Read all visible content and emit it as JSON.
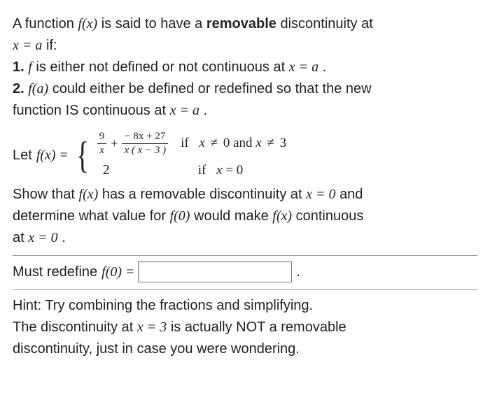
{
  "intro": {
    "line1_pre": "A function ",
    "fx": "f(x)",
    "line1_mid": " is said to have a ",
    "removable": "removable",
    "line1_post": " discontinuity at",
    "line2_pre": "",
    "xeqa": "x = a",
    "line2_post": " if:"
  },
  "cond1": {
    "num": "1.",
    "pre": " ",
    "f": "f",
    "mid": " is either not defined or not continuous at ",
    "xeqa": "x = a",
    "post": "."
  },
  "cond2": {
    "num": "2.",
    "pre": " ",
    "fa": "f(a)",
    "mid": " could either be defined or redefined so that the new",
    "line2": "function IS continuous at ",
    "xeqa": "x = a",
    "post": "."
  },
  "let": {
    "pre": "Let ",
    "fx": "f(x)",
    "eq": " = ",
    "frac1_num": "9",
    "frac1_den": "x",
    "plus": "+",
    "frac2_num": "− 8x + 27",
    "frac2_den": "x ( x − 3 )",
    "if": "if",
    "cond1": "x ≠ 0 and x ≠ 3",
    "val2": "2",
    "cond2": "x = 0"
  },
  "show": {
    "line1_a": "Show that ",
    "fx": "f(x)",
    "line1_b": " has a removable discontinuity at ",
    "xeq0": "x = 0",
    "line1_c": " and",
    "line2_a": "determine what value for ",
    "f0": "f(0)",
    "line2_b": " would make ",
    "fx2": "f(x)",
    "line2_c": " continuous",
    "line3_a": "at ",
    "xeq0b": "x = 0",
    "line3_b": "."
  },
  "redef": {
    "pre": "Must redefine ",
    "f0": "f(0)",
    "eq": " = ",
    "placeholder": "",
    "dot": "."
  },
  "hint": {
    "l1": "Hint: Try combining the fractions and simplifying.",
    "l2a": "The discontinuity at ",
    "xeq3": "x = 3",
    "l2b": " is actually NOT a removable",
    "l3": "discontinuity, just in case you were wondering."
  },
  "colors": {
    "text": "#222222",
    "bg": "#ffffff",
    "rule": "#999999",
    "boxborder": "#777777"
  }
}
